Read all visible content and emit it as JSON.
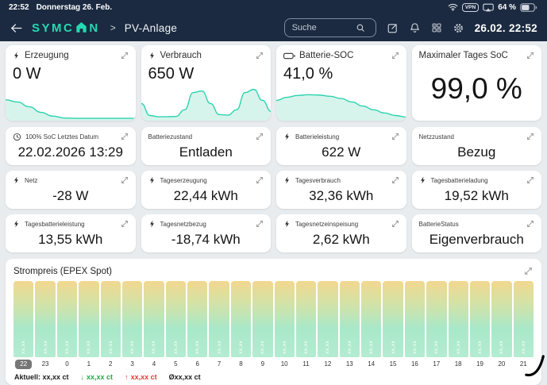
{
  "status_bar": {
    "time": "22:52",
    "date": "Donnerstag 26. Feb.",
    "vpn_label": "VPN",
    "battery_percent": "64 %"
  },
  "header": {
    "logo_pre": "SYMC",
    "logo_post": "N",
    "crumb_sep": ">",
    "page_title": "PV-Anlage",
    "search_placeholder": "Suche",
    "clock": "26.02. 22:52"
  },
  "colors": {
    "navy": "#1b2a40",
    "accent": "#25d9b2",
    "page_bg": "#e9ecee",
    "spark_stroke": "#2cd3ae",
    "spark_fill": "#d7f4ec",
    "bar_gradient_top": "#f2d88f",
    "bar_gradient_bottom": "#a9e8c9",
    "legend_green": "#27a84b",
    "legend_red": "#e53935"
  },
  "tiles_large": [
    {
      "icon": "lightning",
      "label": "Erzeugung",
      "value": "0 W",
      "spark": [
        0.62,
        0.55,
        0.4,
        0.22,
        0.1,
        0.04,
        0.03,
        0.03,
        0.03,
        0.03,
        0.03,
        0.03
      ]
    },
    {
      "icon": "lightning",
      "label": "Verbrauch",
      "value": "650 W",
      "spark": [
        0.5,
        0.12,
        0.08,
        0.08,
        0.09,
        0.3,
        0.85,
        0.9,
        0.5,
        0.15,
        0.13,
        0.3,
        0.85,
        0.95,
        0.6,
        0.25
      ]
    },
    {
      "icon": "battery",
      "label": "Batterie-SOC",
      "value": "41,0 %",
      "spark": [
        0.6,
        0.7,
        0.76,
        0.78,
        0.77,
        0.73,
        0.66,
        0.55,
        0.42,
        0.3,
        0.2,
        0.12,
        0.07
      ]
    },
    {
      "icon": "",
      "label": "Maximaler Tages SoC",
      "value": "99,0 %",
      "big": true
    }
  ],
  "tiles_small": [
    {
      "icon": "clock",
      "label": "100% SoC Letztes Datum",
      "value": "22.02.2026 13:29"
    },
    {
      "icon": "",
      "label": "Batteriezustand",
      "value": "Entladen"
    },
    {
      "icon": "lightning",
      "label": "Batterieleistung",
      "value": "622 W"
    },
    {
      "icon": "",
      "label": "Netzzustand",
      "value": "Bezug"
    },
    {
      "icon": "lightning",
      "label": "Netz",
      "value": "-28 W"
    },
    {
      "icon": "lightning",
      "label": "Tageserzeugung",
      "value": "22,44 kWh"
    },
    {
      "icon": "lightning",
      "label": "Tagesverbrauch",
      "value": "32,36 kWh"
    },
    {
      "icon": "lightning",
      "label": "Tagesbatterieladung",
      "value": "19,52 kWh"
    },
    {
      "icon": "lightning",
      "label": "Tagesbatterieleistung",
      "value": "13,55 kWh"
    },
    {
      "icon": "lightning",
      "label": "Tagesnetzbezug",
      "value": "-18,74 kWh"
    },
    {
      "icon": "lightning",
      "label": "Tagesnetzeinspeisung",
      "value": "2,62 kWh"
    },
    {
      "icon": "",
      "label": "BatterieStatus",
      "value": "Eigenverbrauch"
    }
  ],
  "strompreis": {
    "title": "Strompreis (EPEX Spot)",
    "bar_value_label": "xx,xx",
    "hours": [
      "22",
      "23",
      "0",
      "1",
      "2",
      "3",
      "4",
      "5",
      "6",
      "7",
      "8",
      "9",
      "10",
      "11",
      "12",
      "13",
      "14",
      "15",
      "16",
      "17",
      "18",
      "19",
      "20",
      "21"
    ],
    "active_hour": "22",
    "legend": {
      "current": "Aktuell: xx,xx ct",
      "min_arrow": "↓",
      "min": "xx,xx ct",
      "max_arrow": "↑",
      "max": "xx,xx ct",
      "avg": "Øxx,xx ct"
    }
  }
}
